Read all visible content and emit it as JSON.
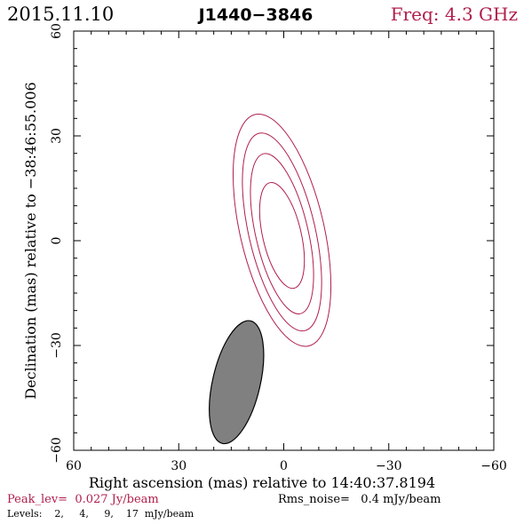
{
  "header": {
    "date": "2015.11.10",
    "source": "J1440−3846",
    "freq": "Freq: 4.3 GHz"
  },
  "colors": {
    "contour": "#b01e4a",
    "accent_text": "#b01e4a",
    "axis": "#000000",
    "beam_fill": "#808080"
  },
  "footer": {
    "peak": "Peak_lev=  0.027 Jy/beam",
    "rms": "Rms_noise=   0.4 mJy/beam",
    "levels": "Levels:    2,     4,     9,    17  mJy/beam"
  },
  "chart_data": {
    "type": "contour",
    "xlabel": "Right ascension (mas) relative to 14:40:37.8194",
    "ylabel": "Declination (mas) relative to −38:46:55.006",
    "xlim": [
      60,
      -60
    ],
    "ylim": [
      -60,
      60
    ],
    "x_ticks": [
      "60",
      "30",
      "0",
      "−30",
      "−60"
    ],
    "y_ticks": [
      "−60",
      "−30",
      "0",
      "30",
      "60"
    ],
    "contour_levels_mJy": [
      2,
      4,
      9,
      17
    ],
    "contours": [
      {
        "level": 2,
        "center_ra": 0.5,
        "center_dec": 3,
        "semi_major": 34,
        "semi_minor": 12,
        "pa_deg": -13
      },
      {
        "level": 4,
        "center_ra": 0.5,
        "center_dec": 2.5,
        "semi_major": 29,
        "semi_minor": 9.5,
        "pa_deg": -13
      },
      {
        "level": 9,
        "center_ra": 0.5,
        "center_dec": 2,
        "semi_major": 23.5,
        "semi_minor": 7.5,
        "pa_deg": -13
      },
      {
        "level": 17,
        "center_ra": 0.5,
        "center_dec": 1.5,
        "semi_major": 15.5,
        "semi_minor": 5.5,
        "pa_deg": -13
      }
    ],
    "beam": {
      "center_ra": 13.5,
      "center_dec": -40.5,
      "semi_major": 18,
      "semi_minor": 6.8,
      "pa_deg": 13
    }
  }
}
